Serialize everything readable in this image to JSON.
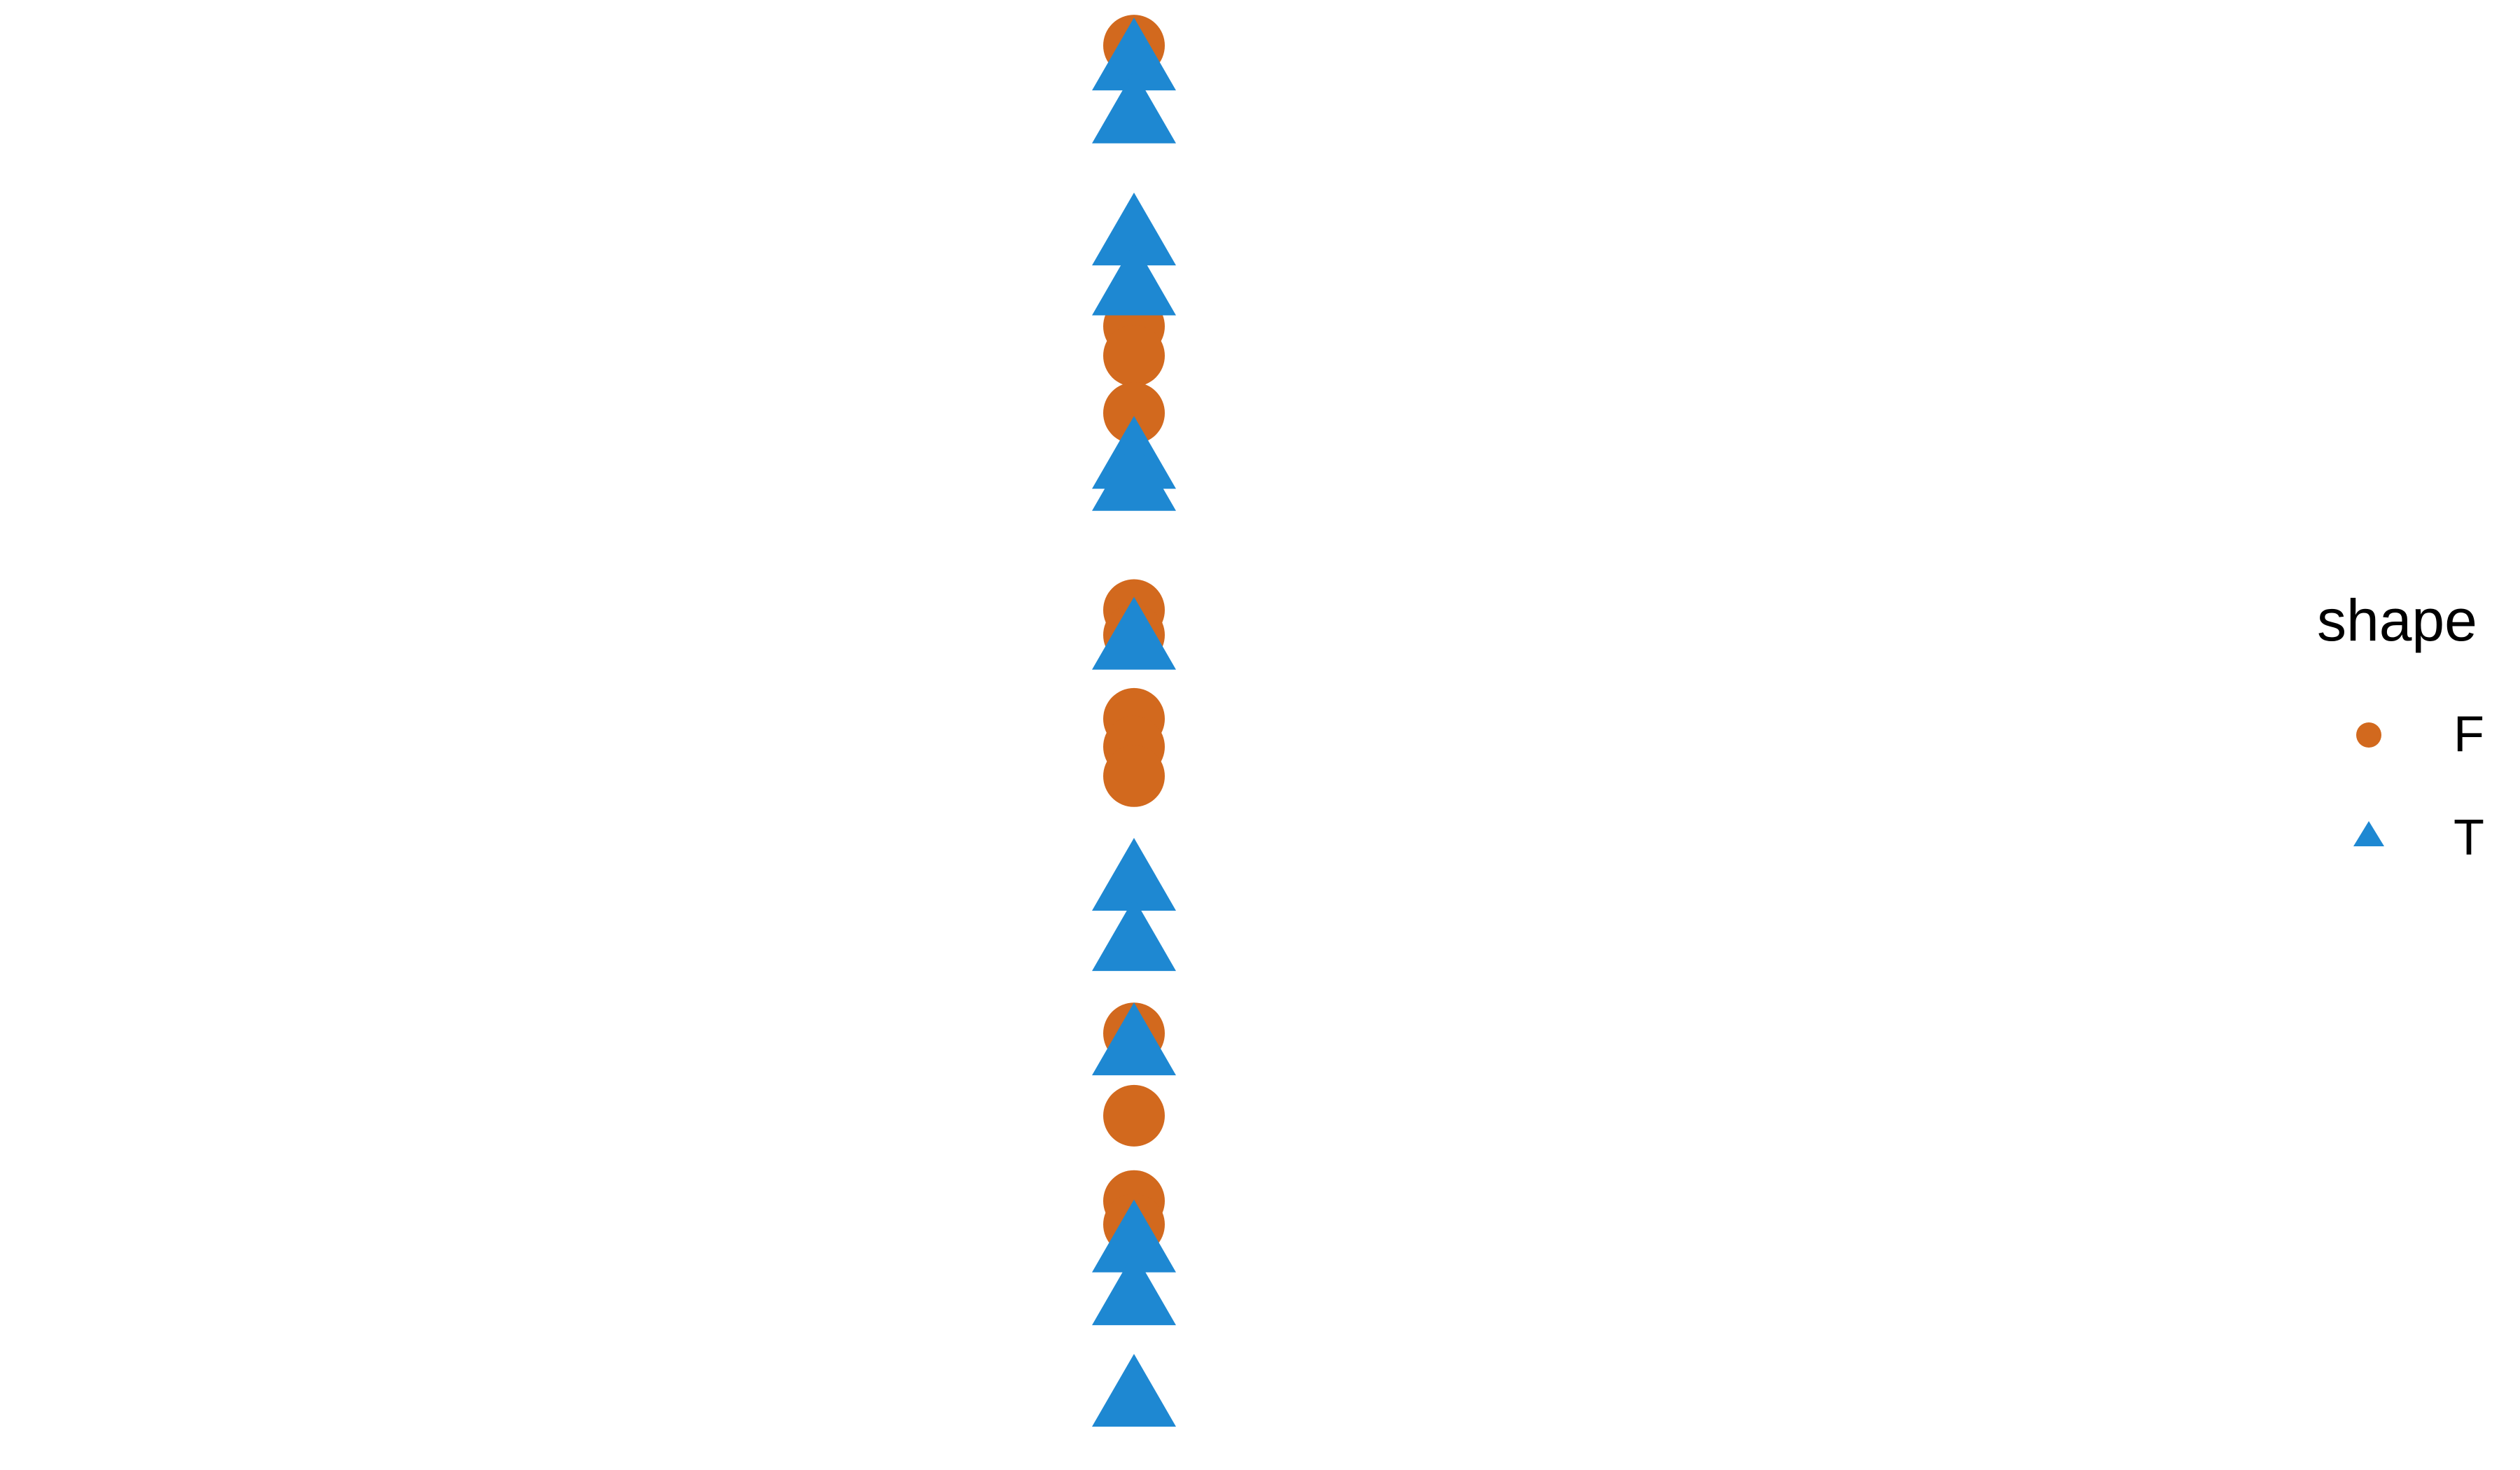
{
  "chart_data": {
    "type": "scatter",
    "title": "",
    "xlabel": "",
    "ylabel": "",
    "grid": false,
    "axes_visible": false,
    "legend": {
      "title": "shape",
      "placement": "right",
      "entries": [
        {
          "label": "F",
          "marker": "circle",
          "color": "#d2691e"
        },
        {
          "label": "T",
          "marker": "triangle",
          "color": "#1e88d2"
        }
      ]
    },
    "x_range": [
      0,
      2
    ],
    "y_range": [
      0,
      100
    ],
    "series": [
      {
        "name": "F",
        "marker": "circle",
        "color": "#d2691e",
        "points": [
          {
            "x": 1,
            "y": 96.9
          },
          {
            "x": 1,
            "y": 77.8
          },
          {
            "x": 1,
            "y": 75.8
          },
          {
            "x": 1,
            "y": 71.9
          },
          {
            "x": 1,
            "y": 58.5
          },
          {
            "x": 1,
            "y": 56.8
          },
          {
            "x": 1,
            "y": 51.1
          },
          {
            "x": 1,
            "y": 49.2
          },
          {
            "x": 1,
            "y": 47.2
          },
          {
            "x": 1,
            "y": 29.7
          },
          {
            "x": 1,
            "y": 24.1
          },
          {
            "x": 1,
            "y": 18.3
          },
          {
            "x": 1,
            "y": 16.7
          }
        ]
      },
      {
        "name": "T",
        "marker": "triangle",
        "color": "#1e88d2",
        "points": [
          {
            "x": 1,
            "y": 95.5
          },
          {
            "x": 1,
            "y": 91.9
          },
          {
            "x": 1,
            "y": 83.6
          },
          {
            "x": 1,
            "y": 80.2
          },
          {
            "x": 1,
            "y": 68.4
          },
          {
            "x": 1,
            "y": 66.9
          },
          {
            "x": 1,
            "y": 56.1
          },
          {
            "x": 1,
            "y": 39.7
          },
          {
            "x": 1,
            "y": 35.6
          },
          {
            "x": 1,
            "y": 28.5
          },
          {
            "x": 1,
            "y": 15.1
          },
          {
            "x": 1,
            "y": 11.5
          },
          {
            "x": 1,
            "y": 4.6
          }
        ]
      }
    ]
  }
}
